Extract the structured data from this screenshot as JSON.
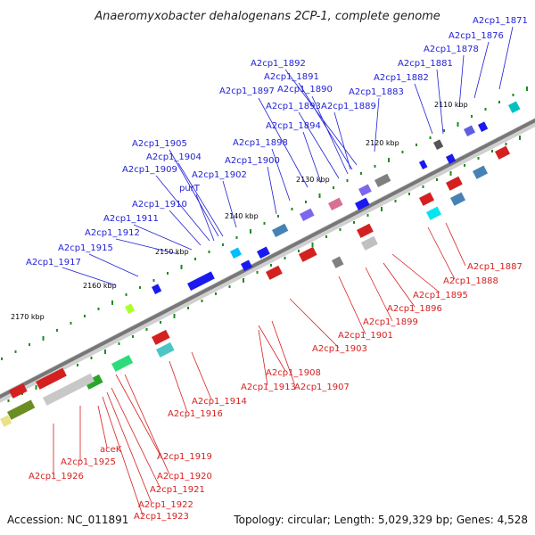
{
  "title": "Anaeromyxobacter dehalogenans 2CP-1, complete genome",
  "footer": {
    "accession": "Accession: NC_011891",
    "summary": "Topology: circular; Length: 5,029,329 bp; Genes: 4,528"
  },
  "scale_ticks": [
    "2110 kbp",
    "2120 kbp",
    "2130 kbp",
    "2140 kbp",
    "2150 kbp",
    "2160 kbp",
    "2170 kbp"
  ],
  "colors": {
    "forward_label": "#1f1fd6",
    "reverse_label": "#d61f1f",
    "backbone": "#7a7a7a",
    "tick": "#1f8a1f"
  },
  "forward_genes": [
    "A2cp1_1871",
    "A2cp1_1876",
    "A2cp1_1878",
    "A2cp1_1881",
    "A2cp1_1882",
    "A2cp1_1883",
    "A2cp1_1889",
    "A2cp1_1890",
    "A2cp1_1891",
    "A2cp1_1892",
    "A2cp1_1893",
    "A2cp1_1894",
    "A2cp1_1897",
    "A2cp1_1898",
    "A2cp1_1900",
    "A2cp1_1902",
    "A2cp1_1904",
    "A2cp1_1905",
    "A2cp1_1909",
    "purT",
    "A2cp1_1910",
    "A2cp1_1911",
    "A2cp1_1912",
    "A2cp1_1915",
    "A2cp1_1917"
  ],
  "reverse_genes": [
    "A2cp1_1887",
    "A2cp1_1888",
    "A2cp1_1895",
    "A2cp1_1896",
    "A2cp1_1899",
    "A2cp1_1901",
    "A2cp1_1903",
    "A2cp1_1907",
    "A2cp1_1908",
    "A2cp1_1913",
    "A2cp1_1914",
    "A2cp1_1916",
    "A2cp1_1919",
    "A2cp1_1920",
    "A2cp1_1921",
    "A2cp1_1922",
    "A2cp1_1923",
    "aceK",
    "A2cp1_1925",
    "A2cp1_1926"
  ]
}
